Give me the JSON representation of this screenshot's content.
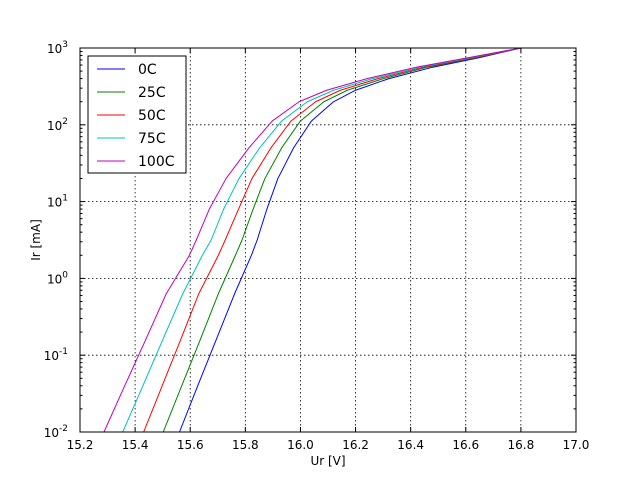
{
  "chart_data": {
    "type": "line",
    "title": "",
    "xlabel": "Ur [V]",
    "ylabel": "Ir [mA]",
    "xlim": [
      15.2,
      17.0
    ],
    "ylim": [
      0.01,
      1000
    ],
    "yscale": "log",
    "grid": true,
    "legend_position": "top-left",
    "x_ticks": [
      "15.2",
      "15.4",
      "15.6",
      "15.8",
      "16.0",
      "16.2",
      "16.4",
      "16.6",
      "16.8",
      "17.0"
    ],
    "y_ticks": [
      {
        "base": "10",
        "exp": "-2",
        "value": 0.01
      },
      {
        "base": "10",
        "exp": "-1",
        "value": 0.1
      },
      {
        "base": "10",
        "exp": "0",
        "value": 1
      },
      {
        "base": "10",
        "exp": "1",
        "value": 10
      },
      {
        "base": "10",
        "exp": "2",
        "value": 100
      },
      {
        "base": "10",
        "exp": "3",
        "value": 1000
      }
    ],
    "series": [
      {
        "name": "0C",
        "color": "#0000ff",
        "x": [
          15.561,
          15.627,
          15.694,
          15.761,
          15.822,
          15.843,
          15.878,
          15.918,
          15.975,
          16.04,
          16.12,
          16.2,
          16.32,
          16.48,
          16.65,
          16.8
        ],
        "y": [
          0.01,
          0.0398,
          0.158,
          0.631,
          1.995,
          3.162,
          7.943,
          19.95,
          50.12,
          112.2,
          199.5,
          281.8,
          398.1,
          562.3,
          749.9,
          1000
        ]
      },
      {
        "name": "25C",
        "color": "#008000",
        "x": [
          15.502,
          15.569,
          15.636,
          15.702,
          15.764,
          15.788,
          15.828,
          15.871,
          15.932,
          16.0,
          16.085,
          16.17,
          16.3,
          16.46,
          16.64,
          16.8
        ],
        "y": [
          0.01,
          0.0398,
          0.158,
          0.631,
          1.995,
          3.162,
          7.943,
          19.95,
          50.12,
          112.2,
          199.5,
          281.8,
          398.1,
          562.3,
          749.9,
          1000
        ]
      },
      {
        "name": "50C",
        "color": "#ff0000",
        "x": [
          15.431,
          15.498,
          15.565,
          15.631,
          15.702,
          15.727,
          15.775,
          15.824,
          15.893,
          15.966,
          16.055,
          16.145,
          16.28,
          16.447,
          16.63,
          16.8
        ],
        "y": [
          0.01,
          0.0398,
          0.158,
          0.631,
          1.995,
          3.162,
          7.943,
          19.95,
          50.12,
          112.2,
          199.5,
          281.8,
          398.1,
          562.3,
          749.9,
          1000
        ]
      },
      {
        "name": "75C",
        "color": "#00bfbf",
        "x": [
          15.355,
          15.428,
          15.5,
          15.573,
          15.644,
          15.676,
          15.721,
          15.777,
          15.852,
          15.932,
          16.025,
          16.12,
          16.26,
          16.433,
          16.62,
          16.8
        ],
        "y": [
          0.01,
          0.0398,
          0.158,
          0.631,
          1.995,
          3.162,
          7.943,
          19.95,
          50.12,
          112.2,
          199.5,
          281.8,
          398.1,
          562.3,
          749.9,
          1000
        ]
      },
      {
        "name": "100C",
        "color": "#bf00bf",
        "x": [
          15.287,
          15.362,
          15.438,
          15.513,
          15.597,
          15.622,
          15.669,
          15.73,
          15.813,
          15.898,
          15.995,
          16.095,
          16.24,
          16.42,
          16.61,
          16.8
        ],
        "y": [
          0.01,
          0.0398,
          0.158,
          0.631,
          1.995,
          3.162,
          7.943,
          19.95,
          50.12,
          112.2,
          199.5,
          281.8,
          398.1,
          562.3,
          749.9,
          1000
        ]
      }
    ]
  }
}
